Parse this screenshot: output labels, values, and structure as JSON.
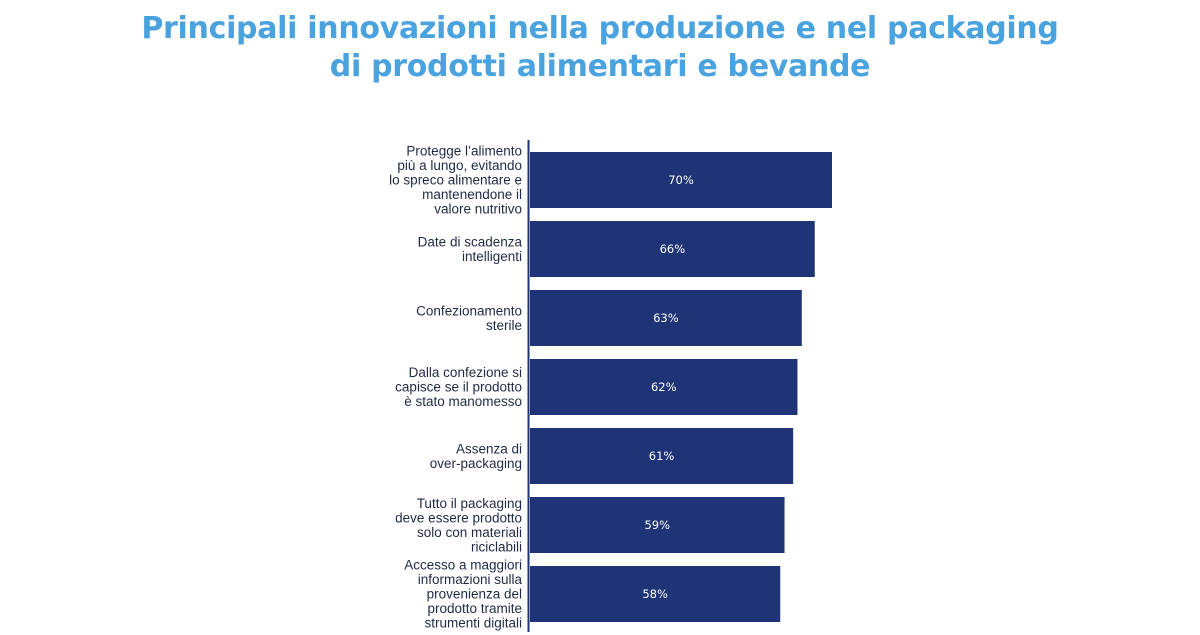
{
  "colors": {
    "title": "#4aa3df",
    "bar": "#1f3476",
    "axis": "#1f3476",
    "text": "#1f2a44",
    "value_text": "#ffffff"
  },
  "title": {
    "line1": "Principali innovazioni nella produzione e nel packaging",
    "line2": "di prodotti alimentari e bevande"
  },
  "chart_data": {
    "type": "bar",
    "orientation": "horizontal",
    "categories": [
      [
        "Protegge l’alimento",
        "più a lungo, evitando",
        "lo spreco alimentare e",
        "mantenendone il",
        "valore nutritivo"
      ],
      [
        "Date di scadenza",
        "intelligenti"
      ],
      [
        "Confezionamento",
        "sterile"
      ],
      [
        "Dalla confezione si",
        "capisce se il prodotto",
        "è stato manomesso"
      ],
      [
        "Assenza di",
        "over-packaging"
      ],
      [
        "Tutto il packaging",
        "deve essere prodotto",
        "solo con materiali",
        "riciclabili"
      ],
      [
        "Accesso a maggiori",
        "informazioni sulla",
        "provenienza del",
        "prodotto tramite",
        "strumenti digitali"
      ]
    ],
    "values": [
      70,
      66,
      63,
      62,
      61,
      59,
      58
    ],
    "value_labels": [
      "70%",
      "66%",
      "63%",
      "62%",
      "61%",
      "59%",
      "58%"
    ],
    "unit": "%",
    "xlim": [
      0,
      70
    ],
    "grid": false,
    "legend": "none"
  }
}
